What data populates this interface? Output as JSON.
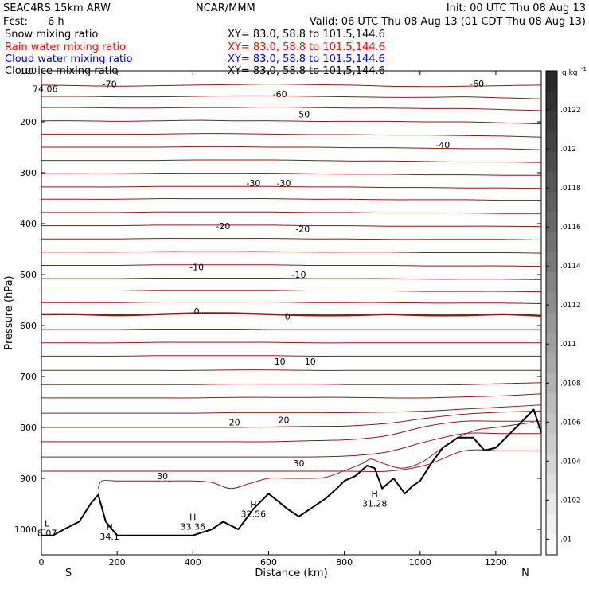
{
  "header": {
    "model": "SEAC4RS 15km ARW",
    "org": "NCAR/MMM",
    "init": "Init: 00 UTC Thu 08 Aug 13",
    "fcst_label": "Fcst:",
    "fcst_value": "6 h",
    "valid": "Valid: 06 UTC Thu 08 Aug 13 (01 CDT Thu 08 Aug 13)"
  },
  "fields": [
    {
      "name": "Snow mixing ratio",
      "xy": "XY=  83.0, 58.8 to 101.5,144.6",
      "color": "#000000"
    },
    {
      "name": "Rain water mixing ratio",
      "xy": "XY=  83.0, 58.8 to 101.5,144.6",
      "color": "#ff0000"
    },
    {
      "name": "Cloud water mixing ratio",
      "xy": "XY=  83.0, 58.8 to 101.5,144.6",
      "color": "#0000cc"
    },
    {
      "name": "Cloud ice mixing ratio",
      "xy": "XY=  83.0, 58.8 to 101.5,144.6",
      "color": "#000000"
    }
  ],
  "chart_data": {
    "type": "line",
    "xlabel": "Distance (km)",
    "ylabel": "Pressure (hPa)",
    "xlim": [
      0,
      1320
    ],
    "ylim": [
      1050,
      100
    ],
    "x_ticks": [
      0,
      200,
      400,
      600,
      800,
      1000,
      1200
    ],
    "y_ticks": [
      100,
      200,
      300,
      400,
      500,
      600,
      700,
      800,
      900,
      1000
    ],
    "x_end_labels": {
      "left": "S",
      "right": "N"
    },
    "temperature_contours": {
      "color": "#8b1a1a",
      "levels": [
        {
          "p": 128,
          "dp": [
            0,
            1,
            2,
            1,
            0,
            -1,
            -2,
            -1,
            0,
            2,
            3,
            2,
            1,
            0
          ]
        },
        {
          "p": 150,
          "dp": [
            0,
            0,
            1,
            1,
            0,
            -1,
            -1,
            0,
            1,
            2,
            2,
            1,
            3,
            5
          ]
        },
        {
          "p": 172,
          "dp": [
            0,
            0,
            1,
            1,
            0,
            0,
            -1,
            0,
            1,
            1,
            2,
            2,
            4,
            6
          ]
        },
        {
          "p": 198,
          "dp": [
            0,
            0,
            1,
            0,
            -1,
            0,
            0,
            1,
            1,
            1,
            2,
            2,
            4,
            6
          ]
        },
        {
          "p": 224,
          "dp": [
            0,
            0,
            0,
            0,
            -1,
            -1,
            0,
            1,
            1,
            2,
            2,
            3,
            4,
            6
          ]
        },
        {
          "p": 250,
          "dp": [
            0,
            0,
            0,
            0,
            -1,
            -1,
            0,
            0,
            1,
            1,
            2,
            3,
            3,
            5
          ]
        },
        {
          "p": 276,
          "dp": [
            0,
            0,
            0,
            0,
            -1,
            -1,
            -1,
            0,
            1,
            1,
            2,
            3,
            3,
            4
          ]
        },
        {
          "p": 302,
          "dp": [
            0,
            0,
            0,
            -1,
            -1,
            -1,
            -1,
            0,
            1,
            1,
            2,
            2,
            3,
            3
          ]
        },
        {
          "p": 328,
          "dp": [
            0,
            0,
            0,
            -1,
            -1,
            -1,
            -1,
            0,
            0,
            1,
            1,
            2,
            2,
            3
          ]
        },
        {
          "p": 352,
          "dp": [
            0,
            0,
            0,
            -1,
            -1,
            -1,
            -1,
            0,
            0,
            1,
            1,
            1,
            2,
            2
          ]
        },
        {
          "p": 378,
          "dp": [
            0,
            0,
            0,
            -1,
            -1,
            -1,
            -1,
            0,
            0,
            1,
            1,
            1,
            2,
            2
          ]
        },
        {
          "p": 404,
          "dp": [
            0,
            0,
            0,
            -1,
            -1,
            -1,
            -1,
            0,
            0,
            1,
            1,
            1,
            1,
            2
          ]
        },
        {
          "p": 430,
          "dp": [
            0,
            0,
            0,
            -1,
            -1,
            -1,
            -1,
            0,
            0,
            1,
            1,
            1,
            1,
            2
          ]
        },
        {
          "p": 456,
          "dp": [
            0,
            0,
            0,
            -1,
            -1,
            -1,
            -1,
            0,
            0,
            0,
            1,
            1,
            1,
            2
          ]
        },
        {
          "p": 482,
          "dp": [
            0,
            0,
            0,
            -1,
            -1,
            -1,
            -1,
            0,
            0,
            0,
            1,
            1,
            1,
            2
          ]
        },
        {
          "p": 508,
          "dp": [
            0,
            0,
            0,
            -1,
            -1,
            -1,
            -1,
            0,
            0,
            0,
            1,
            1,
            1,
            2
          ]
        },
        {
          "p": 532,
          "dp": [
            0,
            0,
            0,
            -1,
            -1,
            -1,
            -1,
            0,
            0,
            0,
            1,
            1,
            1,
            2
          ]
        },
        {
          "p": 555,
          "dp": [
            0,
            0,
            0,
            -1,
            -1,
            -1,
            -1,
            0,
            0,
            0,
            1,
            1,
            1,
            2
          ]
        },
        {
          "p": 578,
          "dp": [
            0,
            0,
            2,
            0,
            -2,
            -2,
            0,
            2,
            2,
            0,
            2,
            2,
            0,
            3
          ]
        },
        {
          "p": 608,
          "dp": [
            0,
            0,
            0,
            -1,
            -1,
            -1,
            0,
            0,
            0,
            0,
            0,
            0,
            0,
            0
          ]
        },
        {
          "p": 634,
          "dp": [
            0,
            0,
            0,
            -1,
            -1,
            -1,
            -1,
            0,
            0,
            0,
            0,
            0,
            0,
            0
          ]
        },
        {
          "p": 660,
          "dp": [
            0,
            0,
            0,
            -1,
            -1,
            -1,
            -1,
            0,
            0,
            0,
            0,
            0,
            0,
            0
          ]
        },
        {
          "p": 688,
          "dp": [
            0,
            0,
            0,
            0,
            0,
            -1,
            -1,
            0,
            0,
            0,
            0,
            0,
            0,
            0
          ]
        },
        {
          "p": 716,
          "dp": [
            0,
            0,
            0,
            0,
            0,
            -1,
            -1,
            -1,
            0,
            0,
            0,
            0,
            -2,
            -4
          ]
        },
        {
          "p": 742,
          "dp": [
            0,
            0,
            0,
            0,
            0,
            -1,
            -1,
            -1,
            -1,
            0,
            0,
            -2,
            -4,
            -8
          ]
        },
        {
          "p": 772,
          "dp": [
            0,
            0,
            0,
            0,
            0,
            -1,
            -1,
            -1,
            -1,
            -2,
            -4,
            -8,
            -12,
            -16
          ]
        },
        {
          "p": 800,
          "dp": [
            0,
            0,
            0,
            0,
            0,
            0,
            -1,
            -2,
            -3,
            -8,
            -18,
            -26,
            -30,
            -32
          ]
        },
        {
          "p": 828,
          "dp": [
            0,
            0,
            0,
            0,
            0,
            0,
            0,
            -2,
            -4,
            -12,
            -30,
            -40,
            -40,
            -40
          ]
        },
        {
          "p": 858,
          "dp": [
            0,
            0,
            0,
            0,
            0,
            0,
            0,
            0,
            -2,
            -10,
            -30,
            -46,
            -46,
            -46
          ]
        },
        {
          "p": 886,
          "dp": [
            0,
            0,
            0,
            0,
            0,
            0,
            0,
            0,
            0,
            0,
            -12,
            -40,
            -40,
            -40
          ]
        }
      ],
      "bold_level_p": 578,
      "labels": [
        {
          "text": "74.06",
          "x": 10,
          "p": 135
        },
        {
          "text": "-70",
          "x": 180,
          "p": 126
        },
        {
          "text": "-60",
          "x": 630,
          "p": 145
        },
        {
          "text": "-60",
          "x": 1150,
          "p": 125
        },
        {
          "text": "-50",
          "x": 690,
          "p": 185
        },
        {
          "text": "-40",
          "x": 1060,
          "p": 245
        },
        {
          "text": "-30",
          "x": 560,
          "p": 320
        },
        {
          "text": "-30",
          "x": 640,
          "p": 320
        },
        {
          "text": "-20",
          "x": 480,
          "p": 405
        },
        {
          "text": "-20",
          "x": 690,
          "p": 410
        },
        {
          "text": "-10",
          "x": 410,
          "p": 485
        },
        {
          "text": "-10",
          "x": 680,
          "p": 500
        },
        {
          "text": "0",
          "x": 410,
          "p": 572
        },
        {
          "text": "0",
          "x": 650,
          "p": 582
        },
        {
          "text": "10",
          "x": 630,
          "p": 670
        },
        {
          "text": "10",
          "x": 710,
          "p": 670
        },
        {
          "text": "20",
          "x": 510,
          "p": 790
        },
        {
          "text": "20",
          "x": 640,
          "p": 785
        },
        {
          "text": "30",
          "x": 320,
          "p": 895
        },
        {
          "text": "30",
          "x": 680,
          "p": 870
        }
      ]
    },
    "dewpoint_curve": {
      "color": "#8b1a1a",
      "x": [
        150,
        160,
        200,
        250,
        300,
        350,
        400,
        450,
        500,
        550,
        600,
        650,
        700,
        750,
        800,
        850,
        870,
        900,
        950,
        1000,
        1050,
        1100,
        1150,
        1200,
        1250,
        1300
      ],
      "p": [
        920,
        905,
        905,
        905,
        905,
        905,
        905,
        908,
        920,
        910,
        900,
        900,
        900,
        898,
        885,
        870,
        862,
        870,
        880,
        870,
        845,
        820,
        805,
        800,
        795,
        790
      ]
    },
    "terrain": {
      "color": "#000000",
      "x": [
        0,
        30,
        60,
        100,
        130,
        150,
        170,
        200,
        250,
        300,
        350,
        400,
        450,
        480,
        520,
        560,
        600,
        650,
        680,
        700,
        750,
        780,
        800,
        830,
        860,
        880,
        900,
        930,
        960,
        980,
        1000,
        1030,
        1060,
        1100,
        1140,
        1170,
        1200,
        1240,
        1280,
        1300,
        1320
      ],
      "p": [
        1012,
        1012,
        1000,
        985,
        950,
        932,
        985,
        1012,
        1012,
        1012,
        1012,
        1012,
        1000,
        985,
        1000,
        960,
        930,
        960,
        975,
        965,
        940,
        920,
        905,
        895,
        875,
        880,
        920,
        900,
        930,
        915,
        905,
        870,
        840,
        820,
        820,
        845,
        840,
        810,
        780,
        765,
        810
      ]
    },
    "extrema": [
      {
        "type": "L",
        "value": "8.07",
        "x": 15,
        "p": 998
      },
      {
        "type": "H",
        "value": "34.1",
        "x": 180,
        "p": 1005
      },
      {
        "type": "H",
        "value": "33.36",
        "x": 400,
        "p": 985
      },
      {
        "type": "H",
        "value": "32.56",
        "x": 560,
        "p": 960
      },
      {
        "type": "H",
        "value": "31.28",
        "x": 880,
        "p": 940
      }
    ]
  },
  "colorbar": {
    "units": "g kg",
    "units_sup": "-1",
    "labels": [
      ".0122",
      ".012",
      ".0118",
      ".0116",
      ".0114",
      ".0112",
      ".011",
      ".0108",
      ".0106",
      ".0104",
      ".0102",
      ".01"
    ]
  }
}
